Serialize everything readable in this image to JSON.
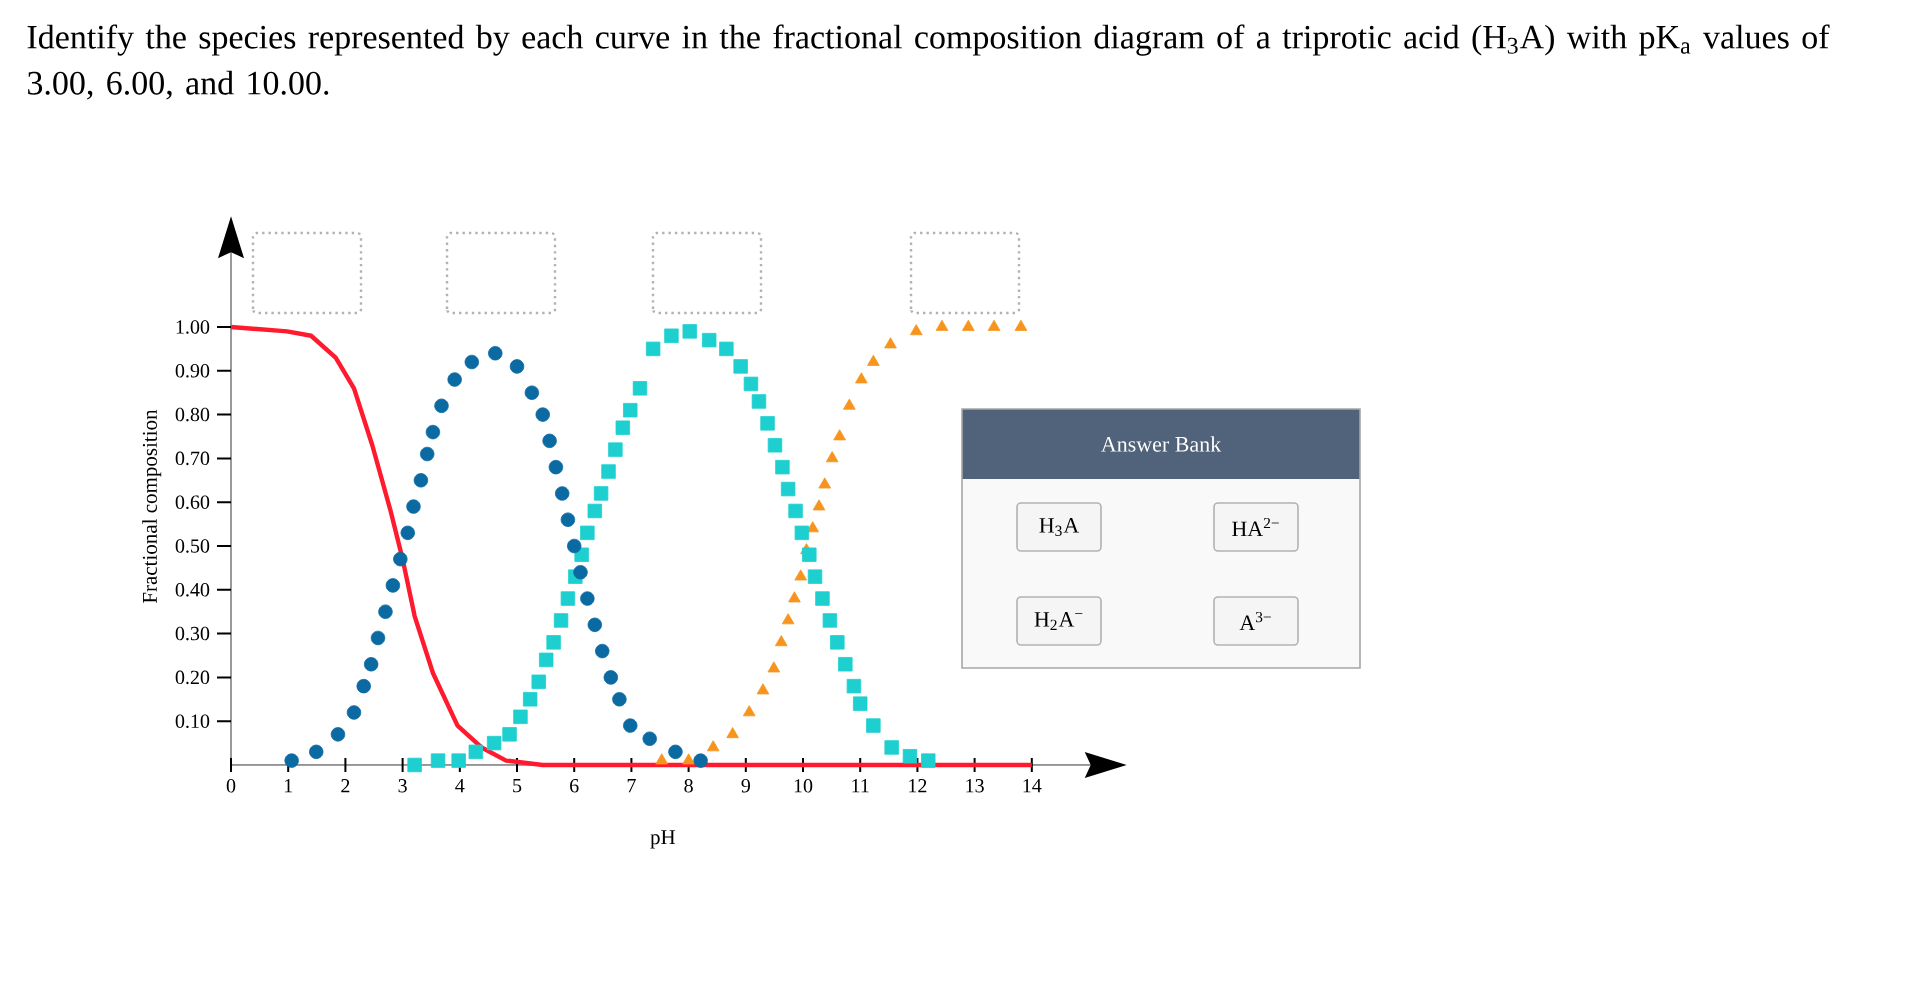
{
  "chart_data": {
    "type": "line",
    "title": "Identify the species represented by each curve in the fractional composition diagram of a triprotic acid (H$_{3}$A) with pK$_{a}$ values of 3.00, 6.00, and 10.00.",
    "xlabel": "pH",
    "ylabel": "Fractional composition",
    "xlim": [
      0,
      15.1
    ],
    "ylim": [
      0,
      1.18
    ],
    "xticks": [
      0,
      1,
      2,
      3,
      4,
      5,
      6,
      7,
      8,
      9,
      10,
      11,
      12,
      13,
      14
    ],
    "yticks": [
      {
        "value": 0.1,
        "label": "0.10"
      },
      {
        "value": 0.2,
        "label": "0.20"
      },
      {
        "value": 0.3,
        "label": "0.30"
      },
      {
        "value": 0.4,
        "label": "0.40"
      },
      {
        "value": 0.5,
        "label": "0.50"
      },
      {
        "value": 0.6,
        "label": "0.60"
      },
      {
        "value": 0.7,
        "label": "0.70"
      },
      {
        "value": 0.8,
        "label": "0.80"
      },
      {
        "value": 0.9,
        "label": "0.90"
      },
      {
        "value": 1.0,
        "label": "1.00"
      }
    ],
    "annotations": [
      "Answer Bank",
      "H$_{3}$A",
      "HA$^{2−}$",
      "H$_{2}$A$^{−}$",
      "A$^{3−}$"
    ],
    "series": [
      {
        "marker": "none",
        "color": "#ff1a2e",
        "x": [
          0,
          0.98,
          1.4,
          1.83,
          2.15,
          2.47,
          2.79,
          3.0,
          3.21,
          3.53,
          3.96,
          4.38,
          4.81,
          5.45,
          14
        ],
        "values": [
          1.0,
          0.99,
          0.98,
          0.93,
          0.86,
          0.73,
          0.58,
          0.47,
          0.34,
          0.21,
          0.09,
          0.04,
          0.01,
          0.0,
          0.0
        ]
      },
      {
        "type": "scatter",
        "marker": "circle",
        "color": "#0b6aa2",
        "x": [
          1.06,
          1.49,
          1.87,
          2.15,
          2.32,
          2.45,
          2.57,
          2.7,
          2.83,
          2.96,
          3.09,
          3.19,
          3.32,
          3.43,
          3.53,
          3.68,
          3.91,
          4.21,
          4.62,
          5.0,
          5.26,
          5.45,
          5.57,
          5.68,
          5.79,
          5.89,
          6.0,
          6.11,
          6.23,
          6.36,
          6.49,
          6.64,
          6.79,
          6.98,
          7.32,
          7.77,
          8.21
        ],
        "values": [
          0.01,
          0.03,
          0.07,
          0.12,
          0.18,
          0.23,
          0.29,
          0.35,
          0.41,
          0.47,
          0.53,
          0.59,
          0.65,
          0.71,
          0.76,
          0.82,
          0.88,
          0.92,
          0.94,
          0.91,
          0.85,
          0.8,
          0.74,
          0.68,
          0.62,
          0.56,
          0.5,
          0.44,
          0.38,
          0.32,
          0.26,
          0.2,
          0.15,
          0.09,
          0.06,
          0.03,
          0.01
        ]
      },
      {
        "type": "scatter",
        "marker": "square",
        "color": "#1ecfcf",
        "x": [
          3.21,
          3.62,
          3.98,
          4.28,
          4.6,
          4.87,
          5.06,
          5.23,
          5.38,
          5.51,
          5.64,
          5.77,
          5.89,
          6.02,
          6.13,
          6.23,
          6.36,
          6.47,
          6.6,
          6.72,
          6.85,
          6.98,
          7.15,
          7.38,
          7.7,
          8.02,
          8.36,
          8.66,
          8.91,
          9.09,
          9.23,
          9.38,
          9.51,
          9.64,
          9.74,
          9.87,
          9.98,
          10.11,
          10.21,
          10.34,
          10.47,
          10.6,
          10.74,
          10.89,
          11.0,
          11.23,
          11.55,
          11.87,
          12.19
        ],
        "values": [
          0.0,
          0.01,
          0.01,
          0.03,
          0.05,
          0.07,
          0.11,
          0.15,
          0.19,
          0.24,
          0.28,
          0.33,
          0.38,
          0.43,
          0.48,
          0.53,
          0.58,
          0.62,
          0.67,
          0.72,
          0.77,
          0.81,
          0.86,
          0.95,
          0.98,
          0.99,
          0.97,
          0.95,
          0.91,
          0.87,
          0.83,
          0.78,
          0.73,
          0.68,
          0.63,
          0.58,
          0.53,
          0.48,
          0.43,
          0.38,
          0.33,
          0.28,
          0.23,
          0.18,
          0.14,
          0.09,
          0.04,
          0.02,
          0.01
        ]
      },
      {
        "type": "scatter",
        "marker": "triangle",
        "color": "#f7941d",
        "x": [
          7.53,
          8.0,
          8.43,
          8.77,
          9.06,
          9.3,
          9.49,
          9.62,
          9.74,
          9.85,
          9.96,
          10.06,
          10.17,
          10.28,
          10.38,
          10.51,
          10.64,
          10.81,
          11.02,
          11.23,
          11.53,
          11.98,
          12.43,
          12.89,
          13.34,
          13.81
        ],
        "values": [
          0.01,
          0.01,
          0.04,
          0.07,
          0.12,
          0.17,
          0.22,
          0.28,
          0.33,
          0.38,
          0.43,
          0.49,
          0.54,
          0.59,
          0.64,
          0.7,
          0.75,
          0.82,
          0.88,
          0.92,
          0.96,
          0.99,
          1.0,
          1.0,
          1.0,
          1.0
        ]
      }
    ]
  }
}
